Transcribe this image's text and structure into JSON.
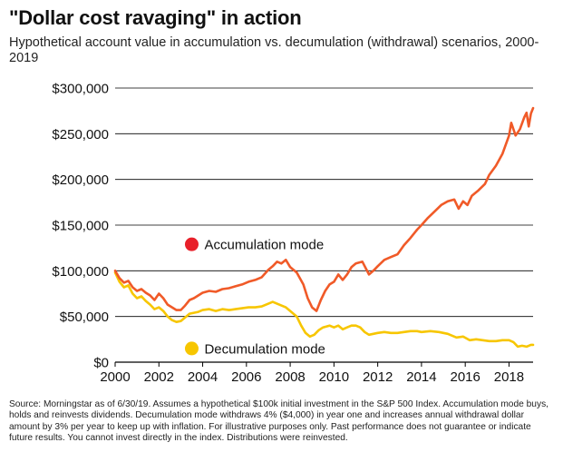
{
  "header": {
    "title": "\"Dollar cost ravaging\" in action",
    "subtitle": "Hypothetical account value in accumulation vs. decumulation (withdrawal) scenarios, 2000-2019"
  },
  "footer": {
    "source": "Source: Morningstar as of 6/30/19. Assumes a hypothetical $100k initial investment in the S&P 500 Index. Accumulation mode buys, holds and reinvests dividends. Decumulation mode withdraws 4% ($4,000) in year one and increases annual withdrawal dollar amount by 3% per year to keep up with inflation. For illustrative purposes only. Past performance does not guarantee or indicate future results. You cannot invest directly in the index. Distributions were reinvested."
  },
  "colors": {
    "accumulation": "#f05a28",
    "decumulation": "#f7c600",
    "accumulation_marker": "#e8202a",
    "decumulation_marker": "#f7c600",
    "grid": "#000000"
  },
  "chart_data": {
    "type": "line",
    "xlim": [
      2000,
      2019.1
    ],
    "ylim": [
      0,
      300000
    ],
    "x_ticks": [
      2000,
      2002,
      2004,
      2006,
      2008,
      2010,
      2012,
      2014,
      2016,
      2018
    ],
    "x_tick_labels": [
      "2000",
      "2002",
      "2004",
      "2006",
      "2008",
      "2010",
      "2012",
      "2014",
      "2016",
      "2018"
    ],
    "y_ticks": [
      0,
      50000,
      100000,
      150000,
      200000,
      250000,
      300000
    ],
    "y_tick_labels": [
      "$0",
      "$50,000",
      "$100,000",
      "$150,000",
      "$200,000",
      "$250,000",
      "$300,000"
    ],
    "grid": "horizontal",
    "series": [
      {
        "name": "Accumulation mode",
        "color_key": "accumulation",
        "points": [
          [
            2000.0,
            100000
          ],
          [
            2000.2,
            92000
          ],
          [
            2000.4,
            87000
          ],
          [
            2000.6,
            89000
          ],
          [
            2000.8,
            82000
          ],
          [
            2001.0,
            78000
          ],
          [
            2001.2,
            80000
          ],
          [
            2001.4,
            76000
          ],
          [
            2001.6,
            73000
          ],
          [
            2001.8,
            68000
          ],
          [
            2002.0,
            75000
          ],
          [
            2002.2,
            70000
          ],
          [
            2002.4,
            63000
          ],
          [
            2002.6,
            60000
          ],
          [
            2002.8,
            57000
          ],
          [
            2003.0,
            57000
          ],
          [
            2003.2,
            62000
          ],
          [
            2003.4,
            68000
          ],
          [
            2003.6,
            70000
          ],
          [
            2003.8,
            73000
          ],
          [
            2004.0,
            76000
          ],
          [
            2004.3,
            78000
          ],
          [
            2004.6,
            77000
          ],
          [
            2004.9,
            80000
          ],
          [
            2005.2,
            81000
          ],
          [
            2005.5,
            83000
          ],
          [
            2005.8,
            85000
          ],
          [
            2006.1,
            88000
          ],
          [
            2006.4,
            90000
          ],
          [
            2006.7,
            93000
          ],
          [
            2007.0,
            101000
          ],
          [
            2007.2,
            105000
          ],
          [
            2007.4,
            110000
          ],
          [
            2007.6,
            108000
          ],
          [
            2007.8,
            112000
          ],
          [
            2008.0,
            104000
          ],
          [
            2008.3,
            98000
          ],
          [
            2008.6,
            85000
          ],
          [
            2008.8,
            70000
          ],
          [
            2009.0,
            60000
          ],
          [
            2009.2,
            56000
          ],
          [
            2009.4,
            68000
          ],
          [
            2009.6,
            78000
          ],
          [
            2009.8,
            85000
          ],
          [
            2010.0,
            88000
          ],
          [
            2010.2,
            96000
          ],
          [
            2010.4,
            90000
          ],
          [
            2010.6,
            96000
          ],
          [
            2010.8,
            104000
          ],
          [
            2011.0,
            108000
          ],
          [
            2011.3,
            110000
          ],
          [
            2011.6,
            96000
          ],
          [
            2011.8,
            100000
          ],
          [
            2012.0,
            105000
          ],
          [
            2012.3,
            112000
          ],
          [
            2012.6,
            115000
          ],
          [
            2012.9,
            118000
          ],
          [
            2013.2,
            128000
          ],
          [
            2013.5,
            136000
          ],
          [
            2013.8,
            145000
          ],
          [
            2014.0,
            150000
          ],
          [
            2014.3,
            158000
          ],
          [
            2014.6,
            165000
          ],
          [
            2014.9,
            172000
          ],
          [
            2015.2,
            176000
          ],
          [
            2015.5,
            178000
          ],
          [
            2015.7,
            168000
          ],
          [
            2015.9,
            176000
          ],
          [
            2016.1,
            172000
          ],
          [
            2016.3,
            182000
          ],
          [
            2016.6,
            188000
          ],
          [
            2016.9,
            195000
          ],
          [
            2017.1,
            205000
          ],
          [
            2017.4,
            215000
          ],
          [
            2017.7,
            228000
          ],
          [
            2018.0,
            248000
          ],
          [
            2018.1,
            262000
          ],
          [
            2018.3,
            248000
          ],
          [
            2018.5,
            255000
          ],
          [
            2018.7,
            268000
          ],
          [
            2018.8,
            273000
          ],
          [
            2018.9,
            258000
          ],
          [
            2019.0,
            272000
          ],
          [
            2019.1,
            278000
          ]
        ]
      },
      {
        "name": "Decumulation mode",
        "color_key": "decumulation",
        "points": [
          [
            2000.0,
            98000
          ],
          [
            2000.2,
            88000
          ],
          [
            2000.4,
            82000
          ],
          [
            2000.6,
            84000
          ],
          [
            2000.8,
            75000
          ],
          [
            2001.0,
            70000
          ],
          [
            2001.2,
            72000
          ],
          [
            2001.4,
            67000
          ],
          [
            2001.6,
            63000
          ],
          [
            2001.8,
            58000
          ],
          [
            2002.0,
            60000
          ],
          [
            2002.2,
            56000
          ],
          [
            2002.4,
            50000
          ],
          [
            2002.6,
            46000
          ],
          [
            2002.8,
            44000
          ],
          [
            2003.0,
            45000
          ],
          [
            2003.2,
            49000
          ],
          [
            2003.4,
            53000
          ],
          [
            2003.6,
            54000
          ],
          [
            2003.8,
            55000
          ],
          [
            2004.0,
            57000
          ],
          [
            2004.3,
            58000
          ],
          [
            2004.6,
            56000
          ],
          [
            2004.9,
            58000
          ],
          [
            2005.2,
            57000
          ],
          [
            2005.5,
            58000
          ],
          [
            2005.8,
            59000
          ],
          [
            2006.1,
            60000
          ],
          [
            2006.4,
            60000
          ],
          [
            2006.7,
            61000
          ],
          [
            2007.0,
            64000
          ],
          [
            2007.2,
            66000
          ],
          [
            2007.4,
            64000
          ],
          [
            2007.6,
            62000
          ],
          [
            2007.8,
            60000
          ],
          [
            2008.0,
            56000
          ],
          [
            2008.3,
            50000
          ],
          [
            2008.5,
            40000
          ],
          [
            2008.7,
            32000
          ],
          [
            2008.9,
            28000
          ],
          [
            2009.1,
            30000
          ],
          [
            2009.3,
            35000
          ],
          [
            2009.5,
            38000
          ],
          [
            2009.8,
            40000
          ],
          [
            2010.0,
            38000
          ],
          [
            2010.2,
            40000
          ],
          [
            2010.4,
            36000
          ],
          [
            2010.6,
            38000
          ],
          [
            2010.8,
            40000
          ],
          [
            2011.0,
            40000
          ],
          [
            2011.2,
            38000
          ],
          [
            2011.4,
            33000
          ],
          [
            2011.6,
            30000
          ],
          [
            2011.8,
            31000
          ],
          [
            2012.0,
            32000
          ],
          [
            2012.3,
            33000
          ],
          [
            2012.6,
            32000
          ],
          [
            2012.9,
            32000
          ],
          [
            2013.2,
            33000
          ],
          [
            2013.5,
            34000
          ],
          [
            2013.8,
            34000
          ],
          [
            2014.0,
            33000
          ],
          [
            2014.4,
            34000
          ],
          [
            2014.8,
            33000
          ],
          [
            2015.2,
            31000
          ],
          [
            2015.6,
            27000
          ],
          [
            2015.9,
            28000
          ],
          [
            2016.2,
            24000
          ],
          [
            2016.5,
            25000
          ],
          [
            2016.8,
            24000
          ],
          [
            2017.1,
            23000
          ],
          [
            2017.4,
            23000
          ],
          [
            2017.7,
            24000
          ],
          [
            2018.0,
            24000
          ],
          [
            2018.2,
            22000
          ],
          [
            2018.4,
            17000
          ],
          [
            2018.6,
            18000
          ],
          [
            2018.8,
            17000
          ],
          [
            2019.0,
            19000
          ],
          [
            2019.1,
            19000
          ]
        ]
      }
    ],
    "annotations": [
      {
        "text": "Accumulation mode",
        "color_key": "accumulation_marker",
        "x": 2003.5,
        "y": 129000
      },
      {
        "text": "Decumulation mode",
        "color_key": "decumulation_marker",
        "x": 2003.5,
        "y": 15000
      }
    ]
  }
}
